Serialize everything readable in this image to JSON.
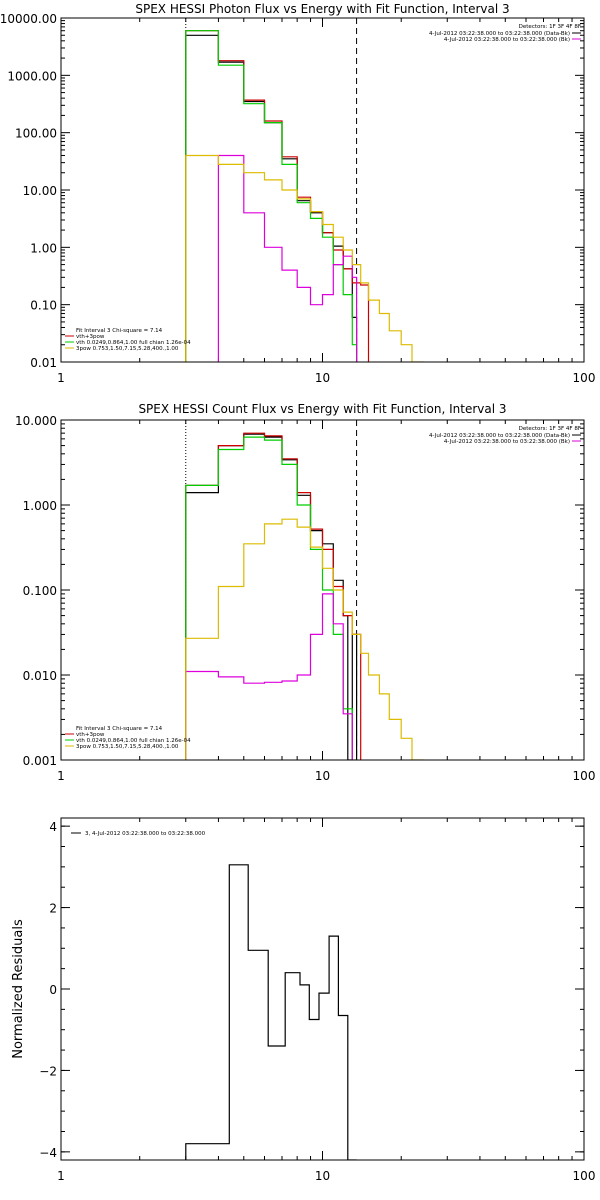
{
  "chart_data": [
    {
      "type": "line",
      "title": "SPEX HESSI Photon Flux vs Energy with Fit Function, Interval 3",
      "xscale": "log",
      "yscale": "log",
      "xlim": [
        1,
        100
      ],
      "ylim": [
        0.01,
        10000
      ],
      "xticks": [
        1,
        10,
        100
      ],
      "xticklabels": [
        "1",
        "10",
        "100"
      ],
      "yticks": [
        0.01,
        0.1,
        1,
        10,
        100,
        1000,
        10000
      ],
      "yticklabels": [
        "0.01",
        "0.10",
        "1.00",
        "10.00",
        "100.00",
        "1000.00",
        "10000.00"
      ],
      "vlines": [
        {
          "x": 3.0,
          "style": "dotted"
        },
        {
          "x": 13.5,
          "style": "dashed"
        }
      ],
      "legend_header": "Detectors: 1F 3F 4F 8F",
      "data_legend": [
        {
          "text": "4-Jul-2012 03:22:38.000 to 03:22:38.000 (Data-Bk)",
          "color": "#000000"
        },
        {
          "text": "4-Jul-2012 03:22:38.000 to 03:22:38.000 (Bk)",
          "color": "#dd00dd"
        }
      ],
      "fit_legend": [
        {
          "text": "Fit Interval 3   Chi-square = 7.14",
          "color": null
        },
        {
          "text": "vth+3pow",
          "color": "#cc0000"
        },
        {
          "text": "vth 0.0249,0.864,1.00  full chian 1.26e-04",
          "color": "#00cc00"
        },
        {
          "text": "3pow 0.753,1.50,7.15,5.28,400.,1.00",
          "color": "#ddbb00"
        }
      ],
      "series": [
        {
          "color": "#000000",
          "edges": [
            3.0,
            4.0,
            5.0,
            6.0,
            7.0,
            8.0,
            9.0,
            10.0,
            11.0,
            12.0,
            13.0,
            13.5
          ],
          "values": [
            5000,
            1700,
            350,
            150,
            35,
            6.5,
            4.0,
            1.8,
            1.05,
            0.42,
            0.06
          ]
        },
        {
          "color": "#cc0000",
          "edges": [
            3.0,
            4.0,
            5.0,
            6.0,
            7.0,
            8.0,
            9.0,
            10.0,
            11.0,
            12.0,
            13.0,
            14.0,
            15.0
          ],
          "values": [
            6000,
            1800,
            370,
            160,
            38,
            7.5,
            4.2,
            1.8,
            0.9,
            0.42,
            0.24,
            0.22
          ]
        },
        {
          "color": "#00cc00",
          "edges": [
            3.0,
            4.0,
            5.0,
            6.0,
            7.0,
            8.0,
            9.0,
            10.0,
            11.0,
            12.0,
            13.0,
            13.5
          ],
          "values": [
            6000,
            1500,
            320,
            150,
            28,
            6.0,
            3.2,
            1.5,
            0.5,
            0.15,
            0.02
          ]
        },
        {
          "color": "#dd00dd",
          "edges": [
            4.0,
            5.0,
            6.0,
            7.0,
            8.0,
            9.0,
            10.0,
            11.0,
            12.0,
            13.0,
            13.5
          ],
          "values": [
            40,
            4.0,
            1.0,
            0.4,
            0.2,
            0.1,
            0.15,
            0.5,
            0.7,
            0.3
          ]
        },
        {
          "color": "#ddbb00",
          "edges": [
            3.0,
            4.0,
            5.0,
            6.0,
            7.0,
            8.0,
            9.0,
            10.0,
            11.0,
            12.0,
            13.0,
            14.0,
            15.0,
            16.5,
            18.0,
            20.0,
            22.0,
            24.5
          ],
          "values": [
            40,
            28,
            20,
            15,
            10,
            7,
            4.2,
            2.5,
            1.5,
            0.9,
            0.5,
            0.24,
            0.12,
            0.07,
            0.035,
            0.02,
            0.01
          ]
        }
      ]
    },
    {
      "type": "line",
      "title": "SPEX HESSI Count Flux vs Energy with Fit Function, Interval 3",
      "xscale": "log",
      "yscale": "log",
      "xlim": [
        1,
        100
      ],
      "ylim": [
        0.001,
        10
      ],
      "xticks": [
        1,
        10,
        100
      ],
      "xticklabels": [
        "1",
        "10",
        "100"
      ],
      "yticks": [
        0.001,
        0.01,
        0.1,
        1,
        10
      ],
      "yticklabels": [
        "0.001",
        "0.010",
        "0.100",
        "1.000",
        "10.000"
      ],
      "vlines": [
        {
          "x": 3.0,
          "style": "dotted"
        },
        {
          "x": 13.5,
          "style": "dashed"
        }
      ],
      "legend_header": "Detectors: 1F 3F 4F 8F",
      "data_legend": [
        {
          "text": "4-Jul-2012 03:22:38.000 to 03:22:38.000 (Data-Bk)",
          "color": "#000000"
        },
        {
          "text": "4-Jul-2012 03:22:38.000 to 03:22:38.000 (Bk)",
          "color": "#dd00dd"
        }
      ],
      "fit_legend": [
        {
          "text": "Fit Interval 3   Chi-square = 7.14",
          "color": null
        },
        {
          "text": "vth+3pow",
          "color": "#cc0000"
        },
        {
          "text": "vth 0.0249,0.864,1.00  full chian 1.26e-04",
          "color": "#00cc00"
        },
        {
          "text": "3pow 0.753,1.50,7.15,5.28,400.,1.00",
          "color": "#ddbb00"
        }
      ],
      "series": [
        {
          "color": "#000000",
          "edges": [
            3.0,
            4.0,
            5.0,
            6.0,
            7.0,
            8.0,
            9.0,
            10.0,
            11.0,
            12.0,
            12.5,
            13.0,
            13.5
          ],
          "values": [
            1.4,
            5.0,
            6.8,
            6.3,
            3.4,
            1.3,
            0.5,
            0.35,
            0.13,
            0.05,
            0.001,
            0.03
          ]
        },
        {
          "color": "#cc0000",
          "edges": [
            3.0,
            4.0,
            5.0,
            6.0,
            7.0,
            8.0,
            9.0,
            10.0,
            11.0,
            12.0,
            13.0,
            14.0
          ],
          "values": [
            1.7,
            5.0,
            7.0,
            6.5,
            3.5,
            1.4,
            0.52,
            0.3,
            0.11,
            0.05,
            0.03
          ]
        },
        {
          "color": "#00cc00",
          "edges": [
            3.0,
            4.0,
            5.0,
            6.0,
            7.0,
            8.0,
            9.0,
            10.0,
            11.0,
            12.0,
            13.0,
            13.5
          ],
          "values": [
            1.7,
            4.5,
            6.3,
            5.8,
            3.0,
            1.0,
            0.3,
            0.1,
            0.03,
            0.004,
            0.001
          ]
        },
        {
          "color": "#dd00dd",
          "edges": [
            3.0,
            4.0,
            5.0,
            6.0,
            7.0,
            8.0,
            9.0,
            10.0,
            11.0,
            12.0,
            13.0
          ],
          "values": [
            0.011,
            0.0095,
            0.008,
            0.0082,
            0.0085,
            0.01,
            0.03,
            0.09,
            0.04,
            0.0035
          ]
        },
        {
          "color": "#ddbb00",
          "edges": [
            3.0,
            4.0,
            5.0,
            6.0,
            7.0,
            8.0,
            9.0,
            10.0,
            11.0,
            12.0,
            13.0,
            14.0,
            15.0,
            16.5,
            18.0,
            20.0,
            22.0,
            24.5
          ],
          "values": [
            0.027,
            0.11,
            0.35,
            0.6,
            0.68,
            0.55,
            0.32,
            0.18,
            0.1,
            0.055,
            0.03,
            0.018,
            0.01,
            0.006,
            0.003,
            0.0018,
            0.001
          ]
        }
      ]
    },
    {
      "type": "line",
      "title": "",
      "ylabel": "Normalized Residuals",
      "xscale": "log",
      "yscale": "linear",
      "xlim": [
        1,
        100
      ],
      "ylim": [
        -4.2,
        4.2
      ],
      "xticks": [
        1,
        10,
        100
      ],
      "xticklabels": [
        "1",
        "10",
        "100"
      ],
      "yticks": [
        -4,
        -2,
        0,
        2,
        4
      ],
      "yticklabels": [
        "−4",
        "−2",
        "0",
        "2",
        "4"
      ],
      "legend": [
        {
          "text": "3, 4-Jul-2012 03:22:38.000 to 03:22:38.000",
          "color": "#000000"
        }
      ],
      "series": [
        {
          "color": "#000000",
          "edges": [
            3.0,
            4.4,
            5.2,
            6.2,
            7.2,
            8.2,
            8.9,
            9.7,
            10.6,
            11.5,
            12.5,
            13.5
          ],
          "values": [
            -3.8,
            3.05,
            0.95,
            -1.4,
            0.4,
            0.1,
            -0.75,
            -0.1,
            1.3,
            -0.65,
            -4.2
          ]
        }
      ]
    }
  ]
}
